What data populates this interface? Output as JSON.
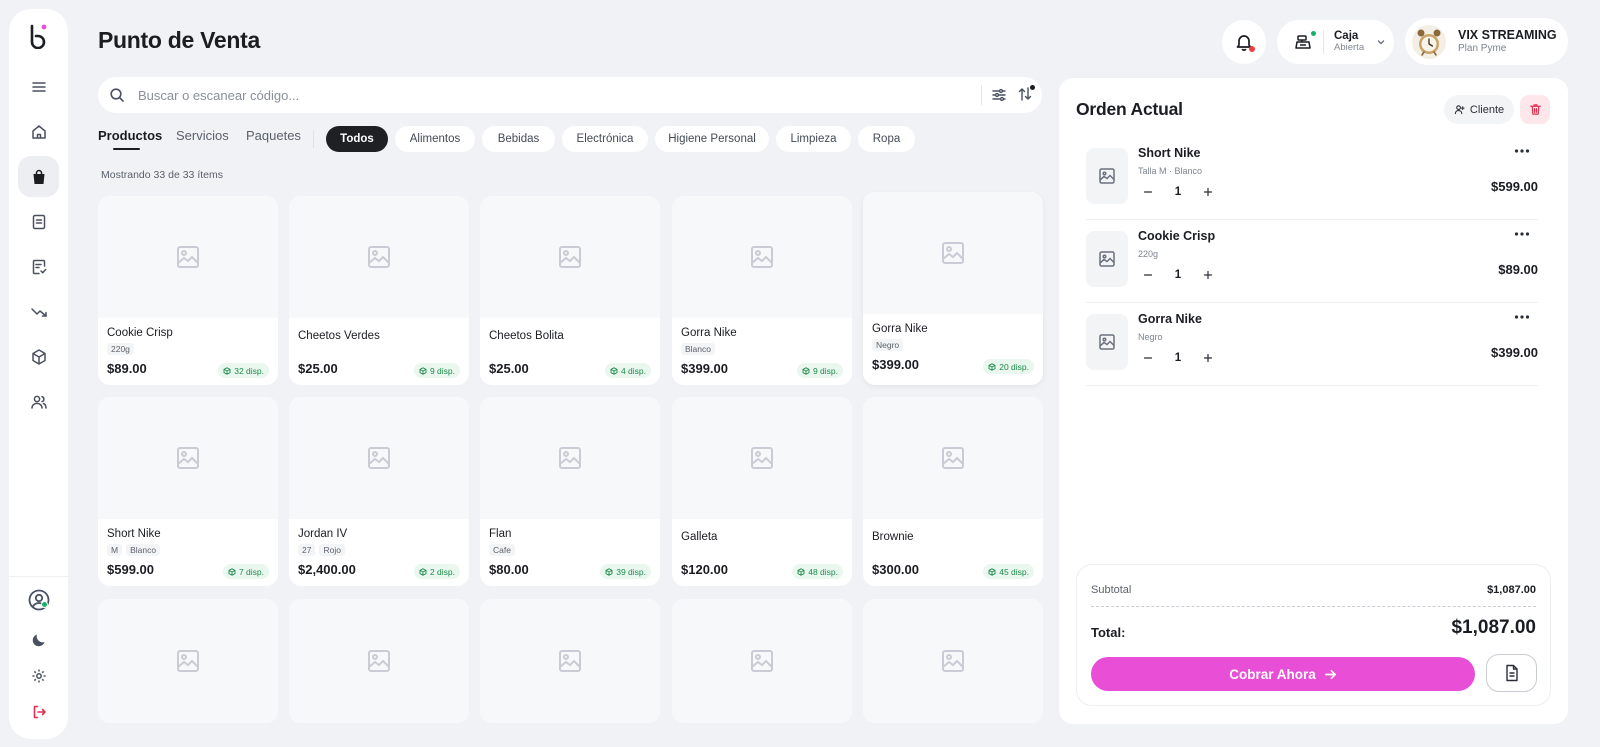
{
  "header": {
    "title": "Punto de Venta",
    "caja_title": "Caja",
    "caja_status": "Abierta",
    "user_name": "VIX STREAMING",
    "user_plan": "Plan Pyme"
  },
  "sidebar": {
    "items": [
      {
        "icon": "menu-icon"
      },
      {
        "icon": "home-icon"
      },
      {
        "icon": "shopping-bag-icon",
        "active": true
      },
      {
        "icon": "receipt-icon"
      },
      {
        "icon": "checklist-icon"
      },
      {
        "icon": "trending-down-icon"
      },
      {
        "icon": "package-icon"
      },
      {
        "icon": "users-icon"
      }
    ],
    "bottom": [
      "profile-icon",
      "moon-icon",
      "gear-icon",
      "logout-icon"
    ]
  },
  "search": {
    "placeholder": "Buscar o escanear código..."
  },
  "tabs": [
    "Productos",
    "Servicios",
    "Paquetes"
  ],
  "categories": [
    "Todos",
    "Alimentos",
    "Bebidas",
    "Electrónica",
    "Higiene Personal",
    "Limpieza",
    "Ropa"
  ],
  "showing": "Mostrando 33 de 33 ítems",
  "products": [
    {
      "name": "Cookie Crisp",
      "tags": [
        "220g"
      ],
      "price": "$89.00",
      "stock": "32 disp."
    },
    {
      "name": "Cheetos Verdes",
      "tags": [],
      "price": "$25.00",
      "stock": "9 disp."
    },
    {
      "name": "Cheetos Bolita",
      "tags": [],
      "price": "$25.00",
      "stock": "4 disp."
    },
    {
      "name": "Gorra Nike",
      "tags": [
        "Blanco"
      ],
      "price": "$399.00",
      "stock": "9 disp."
    },
    {
      "name": "Gorra Nike",
      "tags": [
        "Negro"
      ],
      "price": "$399.00",
      "stock": "20 disp."
    },
    {
      "name": "Short Nike",
      "tags": [
        "M",
        "Blanco"
      ],
      "price": "$599.00",
      "stock": "7 disp."
    },
    {
      "name": "Jordan IV",
      "tags": [
        "27",
        "Rojo"
      ],
      "price": "$2,400.00",
      "stock": "2 disp."
    },
    {
      "name": "Flan",
      "tags": [
        "Cafe"
      ],
      "price": "$80.00",
      "stock": "39 disp."
    },
    {
      "name": "Galleta",
      "tags": [],
      "price": "$120.00",
      "stock": "48 disp."
    },
    {
      "name": "Brownie",
      "tags": [],
      "price": "$300.00",
      "stock": "45 disp."
    }
  ],
  "order": {
    "title": "Orden Actual",
    "client_label": "Cliente",
    "items": [
      {
        "name": "Short Nike",
        "variant": "Talla M · Blanco",
        "qty": "1",
        "price": "$599.00"
      },
      {
        "name": "Cookie Crisp",
        "variant": "220g",
        "qty": "1",
        "price": "$89.00"
      },
      {
        "name": "Gorra Nike",
        "variant": "Negro",
        "qty": "1",
        "price": "$399.00"
      }
    ],
    "subtotal_label": "Subtotal",
    "subtotal": "$1,087.00",
    "total_label": "Total:",
    "total": "$1,087.00",
    "pay_label": "Cobrar Ahora"
  },
  "colors": {
    "accent": "#e94fd6",
    "stock_bg": "#e9f7ef",
    "stock_text": "#1e8a4c",
    "danger": "#e0314f",
    "online": "#17b26a"
  }
}
